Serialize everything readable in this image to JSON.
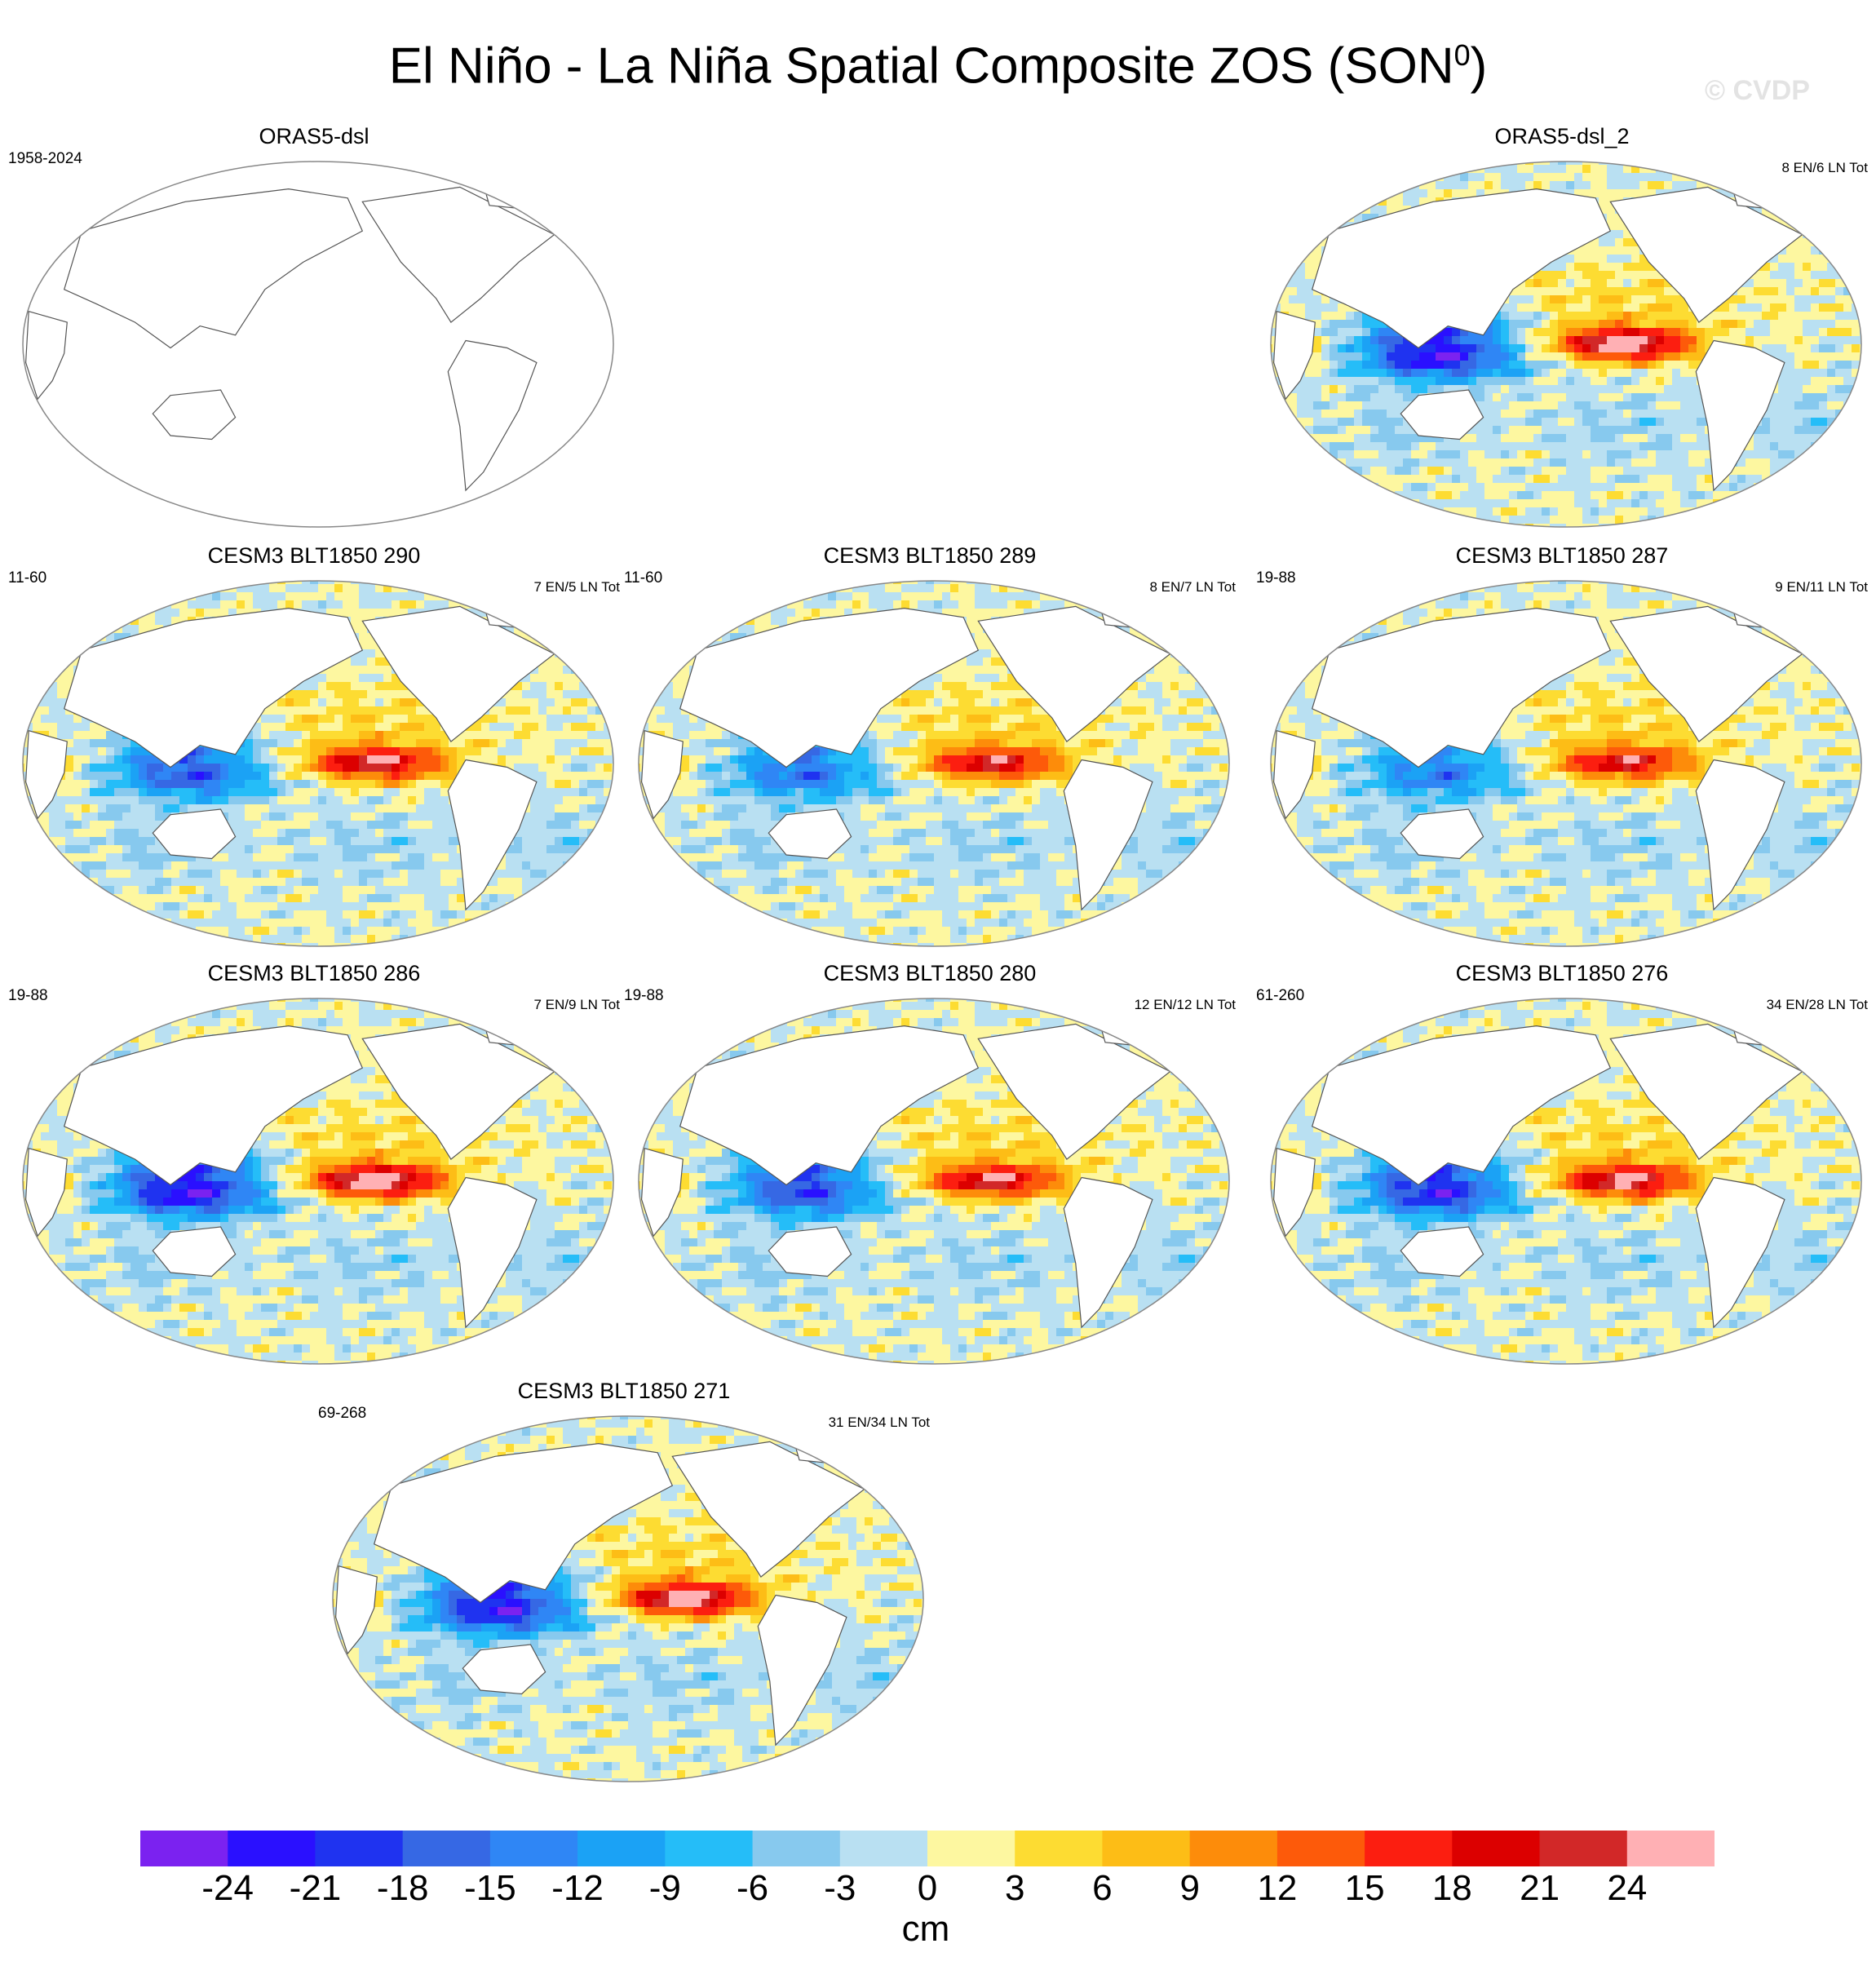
{
  "figure": {
    "title_main": "El Niño - La Niña Spatial Composite ZOS (SON",
    "title_sup": "0",
    "title_close": ")",
    "watermark": "© CVDP"
  },
  "panels": [
    {
      "title": "ORAS5-dsl",
      "years": "1958-2024",
      "counts": "",
      "empty": true
    },
    {
      "title": "ORAS5-dsl_2",
      "years": "",
      "counts": "8 EN/6 LN Tot",
      "amp": 26,
      "west": -20
    },
    {
      "title": "CESM3 BLT1850 290",
      "years": "11-60",
      "counts": "7 EN/5 LN Tot",
      "amp": 22,
      "west": -15
    },
    {
      "title": "CESM3 BLT1850 289",
      "years": "11-60",
      "counts": "8 EN/7 LN Tot",
      "amp": 20,
      "west": -13
    },
    {
      "title": "CESM3 BLT1850 287",
      "years": "19-88",
      "counts": "9 EN/11 LN Tot",
      "amp": 19,
      "west": -12
    },
    {
      "title": "CESM3 BLT1850 286",
      "years": "19-88",
      "counts": "7 EN/9 LN Tot",
      "amp": 26,
      "west": -20
    },
    {
      "title": "CESM3 BLT1850 280",
      "years": "19-88",
      "counts": "12 EN/12 LN Tot",
      "amp": 21,
      "west": -16
    },
    {
      "title": "CESM3 BLT1850 276",
      "years": "61-260",
      "counts": "34 EN/28 LN Tot",
      "amp": 23,
      "west": -18
    },
    {
      "title": "CESM3 BLT1850 271",
      "years": "69-268",
      "counts": "31 EN/34 LN Tot",
      "amp": 25,
      "west": -19
    }
  ],
  "colorbar": {
    "colors": [
      "#7b22f0",
      "#2a10ff",
      "#1f33f0",
      "#3668e4",
      "#2f86f5",
      "#1ba2f5",
      "#25bdf8",
      "#87c9ee",
      "#b9e0f2",
      "#fdf7a0",
      "#fddc32",
      "#fdbd16",
      "#fd8c0a",
      "#fd5a0a",
      "#fc1e10",
      "#dc0000",
      "#d22828",
      "#ffb0b4"
    ],
    "labels": [
      "-24",
      "-21",
      "-18",
      "-15",
      "-12",
      "-9",
      "-6",
      "-3",
      "0",
      "3",
      "6",
      "9",
      "12",
      "15",
      "18",
      "21",
      "24"
    ],
    "units": "cm"
  }
}
